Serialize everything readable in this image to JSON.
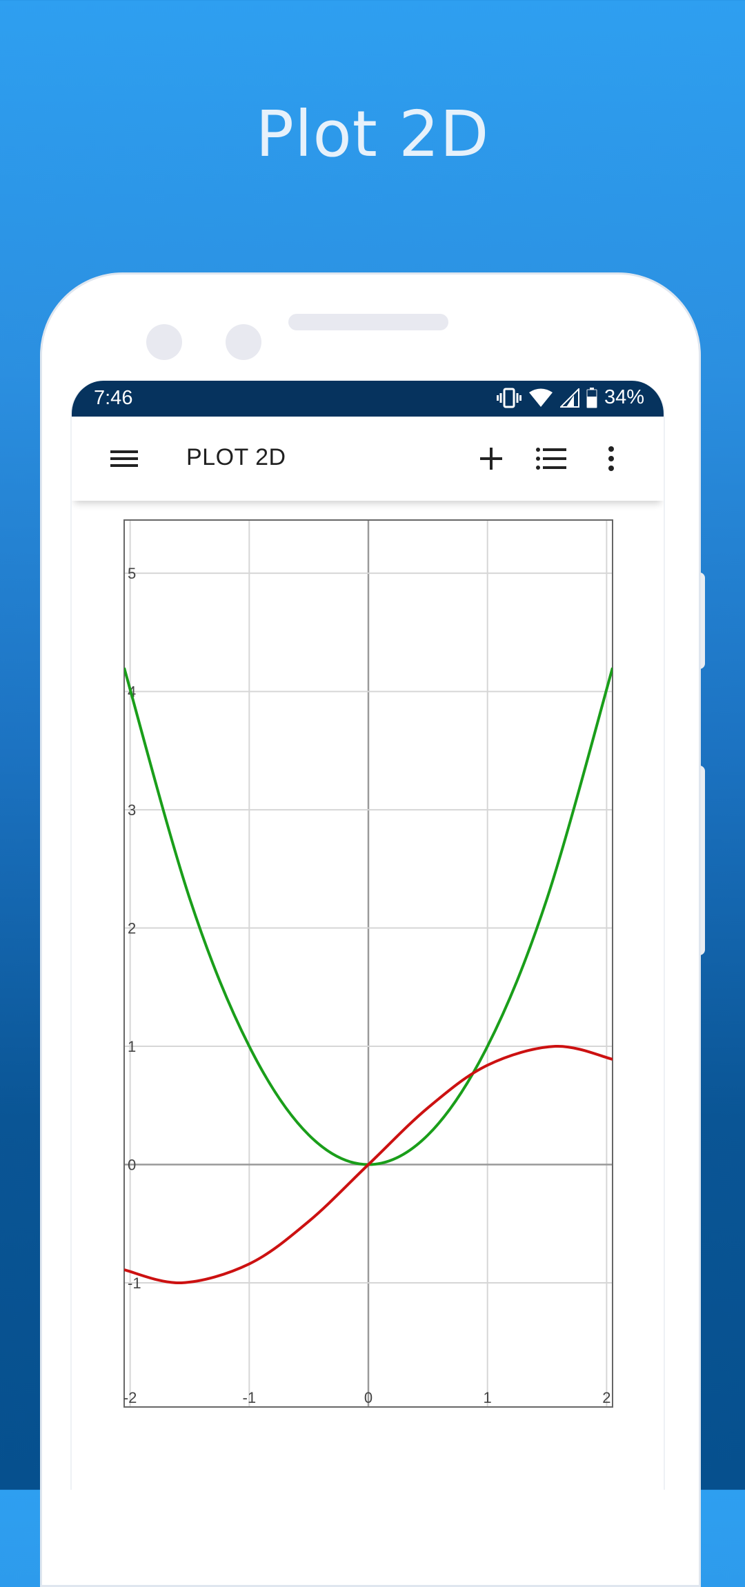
{
  "promo": {
    "title": "Plot 2D"
  },
  "status_bar": {
    "time": "7:46",
    "battery": "34%",
    "icons": [
      "vibrate-icon",
      "wifi-icon",
      "signal-icon",
      "battery-icon"
    ]
  },
  "app_bar": {
    "title": "PLOT 2D",
    "icons": [
      "menu-icon",
      "add-icon",
      "list-icon",
      "more-vert-icon"
    ]
  },
  "colors": {
    "background_top": "#2e9ff0",
    "background_bottom": "#06508e",
    "status_bar": "#06335e",
    "curve_quadratic": "#1a9e1a",
    "curve_sine": "#cc1111"
  },
  "chart_data": {
    "type": "line",
    "xlim": [
      -2.05,
      2.05
    ],
    "ylim": [
      -2.05,
      5.45
    ],
    "x_ticks": [
      "-2",
      "-1",
      "0",
      "1",
      "2"
    ],
    "y_ticks": [
      "-1",
      "0",
      "1",
      "2",
      "3",
      "4",
      "5"
    ],
    "grid": true,
    "series": [
      {
        "color": "#1a9e1a",
        "x": [
          -2.05,
          -1.5,
          -1,
          -0.5,
          0,
          0.5,
          1,
          1.5,
          2.05
        ],
        "y": [
          4.2,
          2.25,
          1,
          0.25,
          0,
          0.25,
          1,
          2.25,
          4.2
        ]
      },
      {
        "color": "#cc1111",
        "x": [
          -2.05,
          -1.57,
          -1,
          -0.5,
          0,
          0.5,
          1,
          1.57,
          2.05
        ],
        "y": [
          -0.89,
          -1,
          -0.84,
          -0.48,
          0,
          0.48,
          0.84,
          1,
          0.89
        ]
      }
    ]
  }
}
